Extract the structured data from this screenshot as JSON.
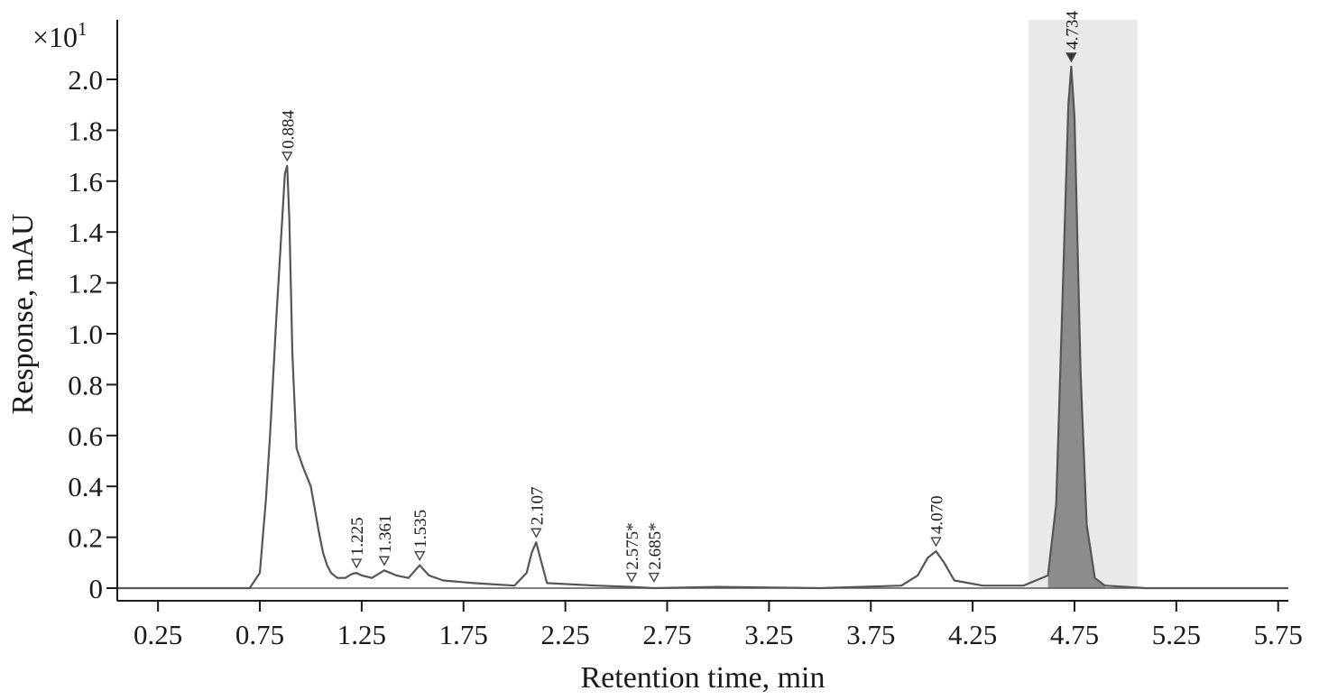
{
  "chart_data": {
    "type": "line",
    "xlabel": "Retention time, min",
    "ylabel": "Response, mAU",
    "y_multiplier_label": "×10",
    "y_multiplier_exponent": "1",
    "xlim": [
      0.05,
      5.8
    ],
    "ylim": [
      -0.05,
      2.25
    ],
    "x_ticks": [
      0.25,
      0.75,
      1.25,
      1.75,
      2.25,
      2.75,
      3.25,
      3.75,
      4.25,
      4.75,
      5.25,
      5.75
    ],
    "x_tick_labels": [
      "0.25",
      "0.75",
      "1.25",
      "1.75",
      "2.25",
      "2.75",
      "3.25",
      "3.75",
      "4.25",
      "4.75",
      "5.25",
      "5.75"
    ],
    "y_ticks": [
      0,
      0.2,
      0.4,
      0.6,
      0.8,
      1.0,
      1.2,
      1.4,
      1.6,
      1.8,
      2.0
    ],
    "y_tick_labels": [
      "0",
      "0.2",
      "0.4",
      "0.6",
      "0.8",
      "1.0",
      "1.2",
      "1.4",
      "1.6",
      "1.8",
      "2.0"
    ],
    "highlight_region": [
      4.525,
      5.06
    ],
    "grid": false,
    "series": [
      {
        "x": [
          0.05,
          0.5,
          0.7,
          0.75,
          0.78,
          0.8,
          0.83,
          0.86,
          0.873,
          0.884,
          0.895,
          0.91,
          0.93,
          0.96,
          1.0,
          1.04,
          1.06,
          1.08,
          1.1,
          1.13,
          1.17,
          1.2,
          1.225,
          1.25,
          1.3,
          1.361,
          1.42,
          1.48,
          1.535,
          1.58,
          1.65,
          1.8,
          2.0,
          2.06,
          2.085,
          2.107,
          2.13,
          2.16,
          2.4,
          2.575,
          2.685,
          3.0,
          3.5,
          3.9,
          3.98,
          4.03,
          4.07,
          4.11,
          4.16,
          4.3,
          4.5,
          4.62,
          4.66,
          4.69,
          4.72,
          4.734,
          4.75,
          4.78,
          4.81,
          4.85,
          4.9,
          5.1,
          5.5,
          5.8
        ],
        "y": [
          0.0,
          0.0,
          0.0,
          0.06,
          0.35,
          0.6,
          1.05,
          1.45,
          1.63,
          1.66,
          1.45,
          0.92,
          0.55,
          0.48,
          0.4,
          0.22,
          0.14,
          0.09,
          0.06,
          0.04,
          0.04,
          0.055,
          0.06,
          0.05,
          0.04,
          0.07,
          0.05,
          0.04,
          0.09,
          0.05,
          0.03,
          0.02,
          0.01,
          0.06,
          0.14,
          0.18,
          0.11,
          0.02,
          0.01,
          0.005,
          0.0,
          0.005,
          0.0,
          0.01,
          0.05,
          0.12,
          0.145,
          0.1,
          0.03,
          0.01,
          0.01,
          0.05,
          0.33,
          1.1,
          1.9,
          2.05,
          1.85,
          0.85,
          0.25,
          0.04,
          0.01,
          0.0,
          0.0,
          0.0
        ]
      }
    ],
    "peak_labels": [
      {
        "x": 0.884,
        "y": 1.66,
        "text": "0.884"
      },
      {
        "x": 1.225,
        "y": 0.06,
        "text": "1.225"
      },
      {
        "x": 1.361,
        "y": 0.07,
        "text": "1.361"
      },
      {
        "x": 1.535,
        "y": 0.09,
        "text": "1.535"
      },
      {
        "x": 2.107,
        "y": 0.18,
        "text": "2.107"
      },
      {
        "x": 2.575,
        "y": 0.005,
        "text": "2.575*"
      },
      {
        "x": 2.685,
        "y": 0.005,
        "text": "2.685*"
      },
      {
        "x": 4.07,
        "y": 0.145,
        "text": "4.070"
      },
      {
        "x": 4.734,
        "y": 2.05,
        "text": "4.734",
        "selected": true
      }
    ]
  }
}
